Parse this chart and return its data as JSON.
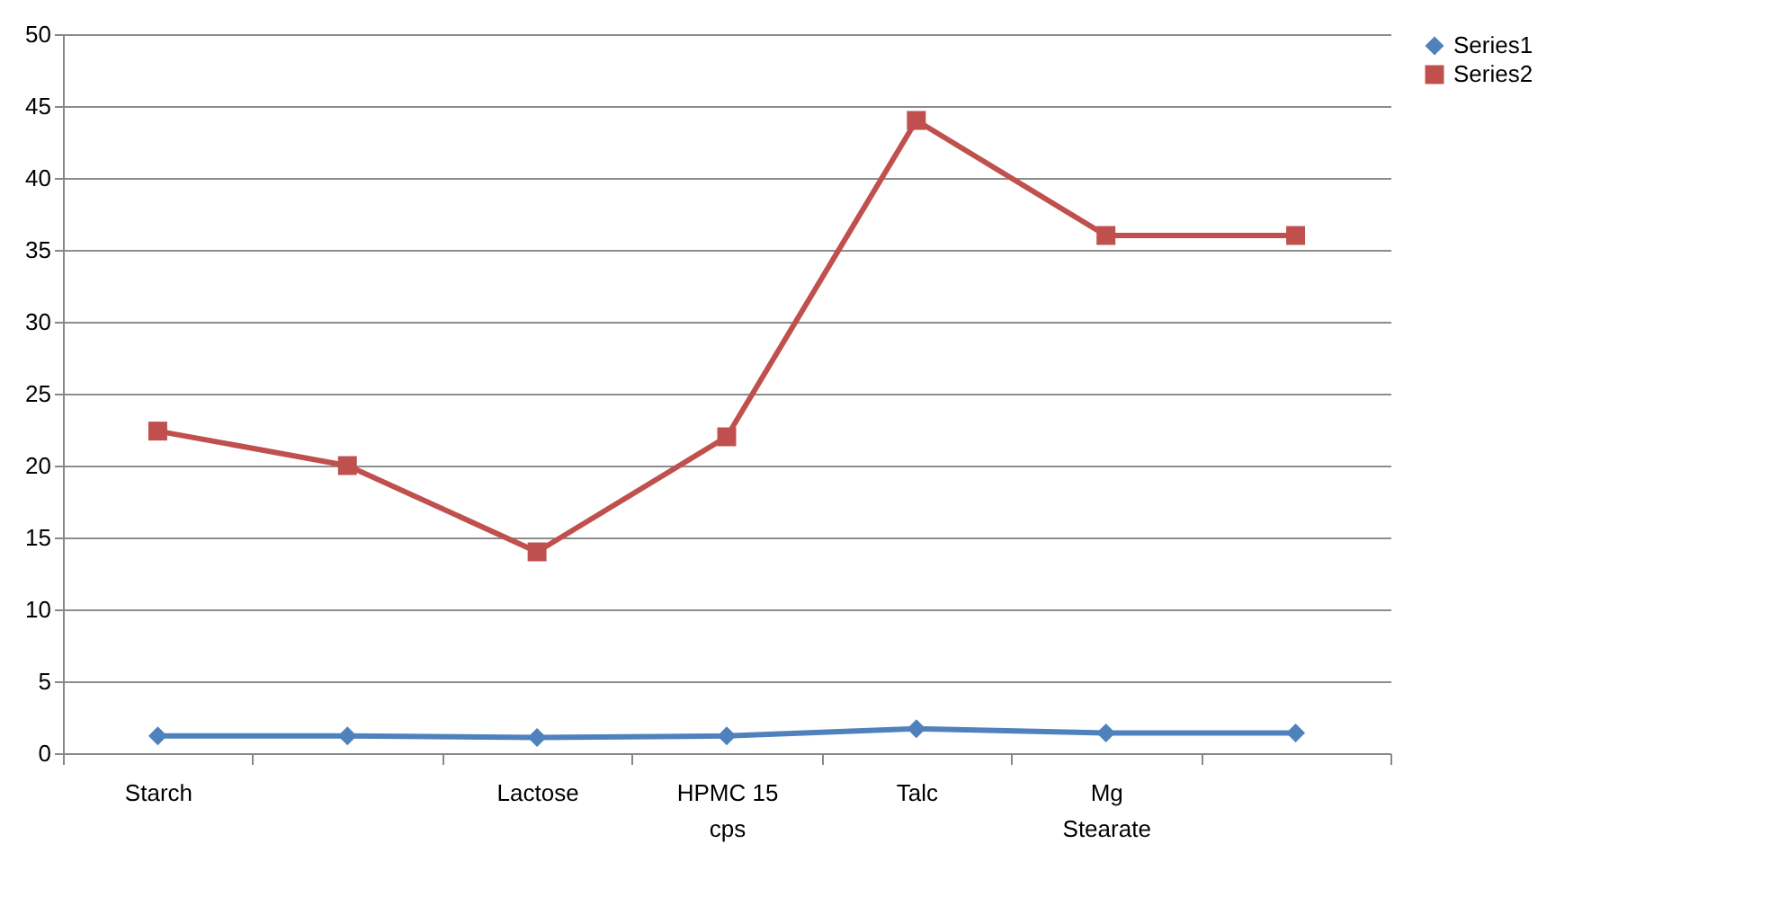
{
  "chart_data": {
    "type": "line",
    "categories": [
      "Starch",
      null,
      "Lactose",
      "HPMC 15 cps",
      "Talc",
      "Mg Stearate",
      null
    ],
    "series": [
      {
        "name": "Series1",
        "color": "#4f81bd",
        "marker": "diamond",
        "values": [
          1.2,
          1.2,
          1.1,
          1.2,
          1.7,
          1.4,
          1.4
        ]
      },
      {
        "name": "Series2",
        "color": "#c0504d",
        "marker": "square",
        "values": [
          22.4,
          20,
          14,
          22,
          44,
          36,
          36
        ]
      }
    ],
    "ylim": [
      0,
      50
    ],
    "yticks": [
      0,
      5,
      10,
      15,
      20,
      25,
      30,
      35,
      40,
      45,
      50
    ],
    "grid": "y",
    "legend": "right",
    "line_style": "solid"
  }
}
